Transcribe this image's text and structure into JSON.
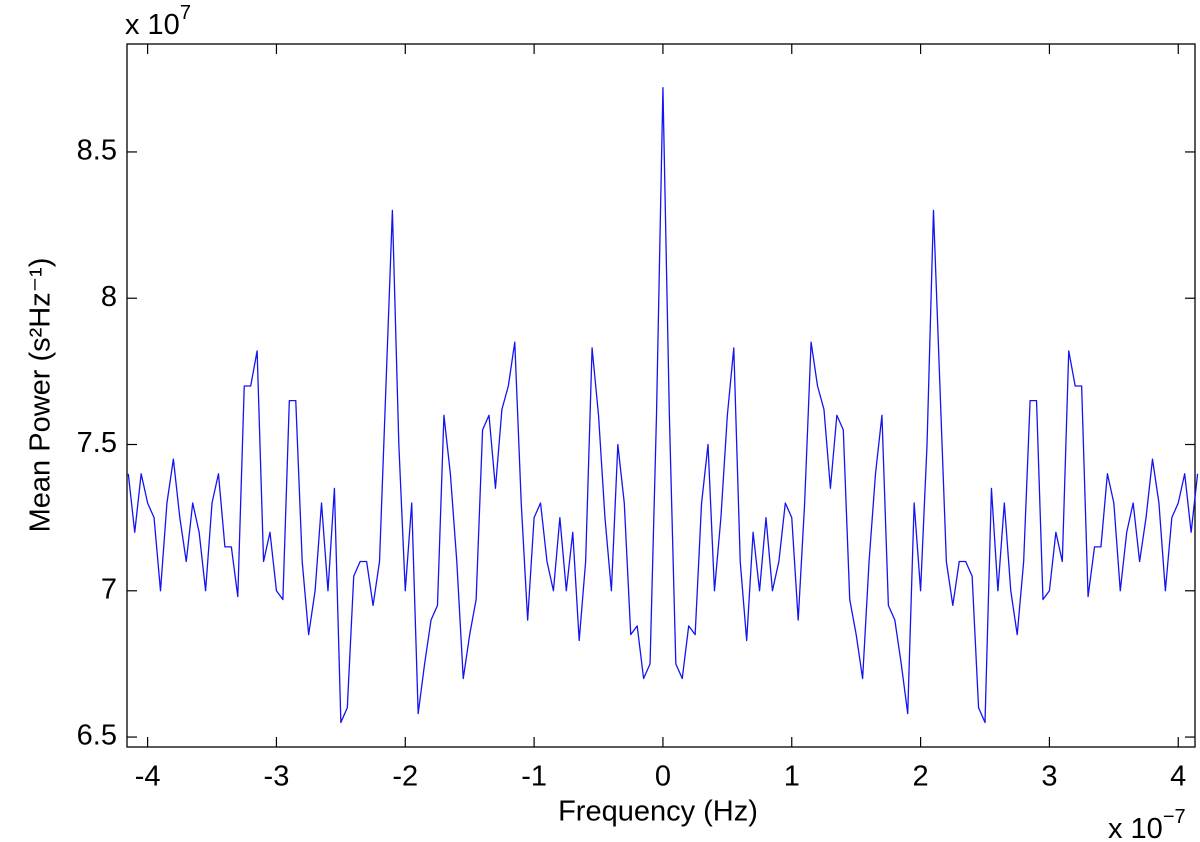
{
  "chart_data": {
    "type": "line",
    "y_label": "Mean Power (s²Hz⁻¹)",
    "x_label": "Frequency (Hz)",
    "y_multiplier": {
      "base": "x 10",
      "exponent": "7"
    },
    "x_multiplier": {
      "base": "x 10",
      "exponent": "−7"
    },
    "xlim": [
      -4.16,
      4.13
    ],
    "ylim": [
      6.466,
      8.869
    ],
    "xticks": [
      -4,
      -3,
      -2,
      -1,
      0,
      1,
      2,
      3,
      4
    ],
    "yticks": [
      6.5,
      7,
      7.5,
      8,
      8.5
    ],
    "grid": false,
    "x": [
      -4.15,
      -4.1,
      -4.05,
      -4.0,
      -3.95,
      -3.9,
      -3.85,
      -3.8,
      -3.75,
      -3.7,
      -3.65,
      -3.6,
      -3.55,
      -3.5,
      -3.45,
      -3.4,
      -3.35,
      -3.3,
      -3.25,
      -3.2,
      -3.15,
      -3.1,
      -3.05,
      -3.0,
      -2.95,
      -2.9,
      -2.85,
      -2.8,
      -2.75,
      -2.7,
      -2.65,
      -2.6,
      -2.55,
      -2.5,
      -2.45,
      -2.4,
      -2.35,
      -2.3,
      -2.25,
      -2.2,
      -2.15,
      -2.1,
      -2.05,
      -2.0,
      -1.95,
      -1.9,
      -1.85,
      -1.8,
      -1.75,
      -1.7,
      -1.65,
      -1.6,
      -1.55,
      -1.5,
      -1.45,
      -1.4,
      -1.35,
      -1.3,
      -1.25,
      -1.2,
      -1.15,
      -1.1,
      -1.05,
      -1.0,
      -0.95,
      -0.9,
      -0.85,
      -0.8,
      -0.75,
      -0.7,
      -0.65,
      -0.6,
      -0.55,
      -0.5,
      -0.45,
      -0.4,
      -0.35,
      -0.3,
      -0.25,
      -0.2,
      -0.15,
      -0.1,
      -0.05,
      0,
      0.05,
      0.1,
      0.15,
      0.2,
      0.25,
      0.3,
      0.35,
      0.4,
      0.45,
      0.5,
      0.55,
      0.6,
      0.65,
      0.7,
      0.75,
      0.8,
      0.85,
      0.9,
      0.95,
      1.0,
      1.05,
      1.1,
      1.15,
      1.2,
      1.25,
      1.3,
      1.35,
      1.4,
      1.45,
      1.5,
      1.55,
      1.6,
      1.65,
      1.7,
      1.75,
      1.8,
      1.85,
      1.9,
      1.95,
      2.0,
      2.05,
      2.1,
      2.15,
      2.2,
      2.25,
      2.3,
      2.35,
      2.4,
      2.45,
      2.5,
      2.55,
      2.6,
      2.65,
      2.7,
      2.75,
      2.8,
      2.85,
      2.9,
      2.95,
      3.0,
      3.05,
      3.1,
      3.15,
      3.2,
      3.25,
      3.3,
      3.35,
      3.4,
      3.45,
      3.5,
      3.55,
      3.6,
      3.65,
      3.7,
      3.75,
      3.8,
      3.85,
      3.9,
      3.95,
      4.0,
      4.05,
      4.1,
      4.15
    ],
    "series": [
      {
        "color": "#1414f0",
        "values": [
          7.4,
          7.2,
          7.4,
          7.3,
          7.25,
          7.0,
          7.3,
          7.45,
          7.25,
          7.1,
          7.3,
          7.2,
          7.0,
          7.3,
          7.4,
          7.15,
          7.15,
          6.98,
          7.7,
          7.7,
          7.82,
          7.1,
          7.2,
          7.0,
          6.97,
          7.65,
          7.65,
          7.1,
          6.85,
          7.0,
          7.3,
          7.0,
          7.35,
          6.55,
          6.6,
          7.05,
          7.1,
          7.1,
          6.95,
          7.1,
          7.7,
          8.3,
          7.5,
          7.0,
          7.3,
          6.58,
          6.75,
          6.9,
          6.95,
          7.6,
          7.4,
          7.1,
          6.7,
          6.85,
          6.97,
          7.55,
          7.6,
          7.35,
          7.62,
          7.7,
          7.85,
          7.3,
          6.9,
          7.25,
          7.3,
          7.1,
          7.0,
          7.25,
          7.0,
          7.2,
          6.83,
          7.1,
          7.83,
          7.6,
          7.25,
          7.0,
          7.5,
          7.3,
          6.85,
          6.88,
          6.7,
          6.75,
          7.6,
          8.72,
          7.6,
          6.75,
          6.7,
          6.88,
          6.85,
          7.3,
          7.5,
          7.0,
          7.25,
          7.6,
          7.83,
          7.1,
          6.83,
          7.2,
          7.0,
          7.25,
          7.0,
          7.1,
          7.3,
          7.25,
          6.9,
          7.3,
          7.85,
          7.7,
          7.62,
          7.35,
          7.6,
          7.55,
          6.97,
          6.85,
          6.7,
          7.1,
          7.4,
          7.6,
          6.95,
          6.9,
          6.75,
          6.58,
          7.3,
          7.0,
          7.5,
          8.3,
          7.7,
          7.1,
          6.95,
          7.1,
          7.1,
          7.05,
          6.6,
          6.55,
          7.35,
          7.0,
          7.3,
          7.0,
          6.85,
          7.1,
          7.65,
          7.65,
          6.97,
          7.0,
          7.2,
          7.1,
          7.82,
          7.7,
          7.7,
          6.98,
          7.15,
          7.15,
          7.4,
          7.3,
          7.0,
          7.2,
          7.3,
          7.1,
          7.25,
          7.45,
          7.3,
          7.0,
          7.25,
          7.3,
          7.4,
          7.2,
          7.4
        ]
      }
    ]
  }
}
